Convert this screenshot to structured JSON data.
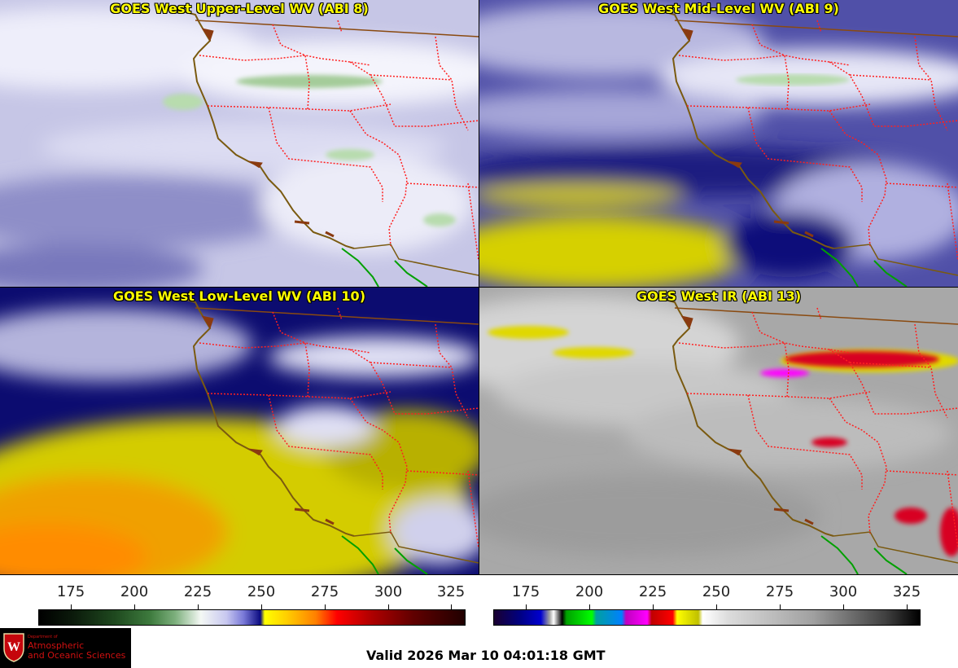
{
  "panels": [
    {
      "title": "GOES West Upper-Level WV (ABI 8)"
    },
    {
      "title": "GOES West Mid-Level WV (ABI 9)"
    },
    {
      "title": "GOES West Low-Level WV (ABI 10)"
    },
    {
      "title": "GOES West IR (ABI 13)"
    }
  ],
  "colorbar_left": {
    "ticks": [
      "175",
      "200",
      "225",
      "250",
      "275",
      "300",
      "325"
    ]
  },
  "colorbar_right": {
    "ticks": [
      "175",
      "200",
      "225",
      "250",
      "275",
      "300",
      "325"
    ]
  },
  "logo": {
    "line1": "Department of",
    "line2": "Atmospheric",
    "line3": "and Oceanic Sciences",
    "seal_letter": "W"
  },
  "valid_time": "Valid 2026 Mar 10 04:01:18 GMT",
  "colors": {
    "title_text": "#ffff00",
    "border_state": "#ff2020",
    "coast": "#7a5a10"
  }
}
